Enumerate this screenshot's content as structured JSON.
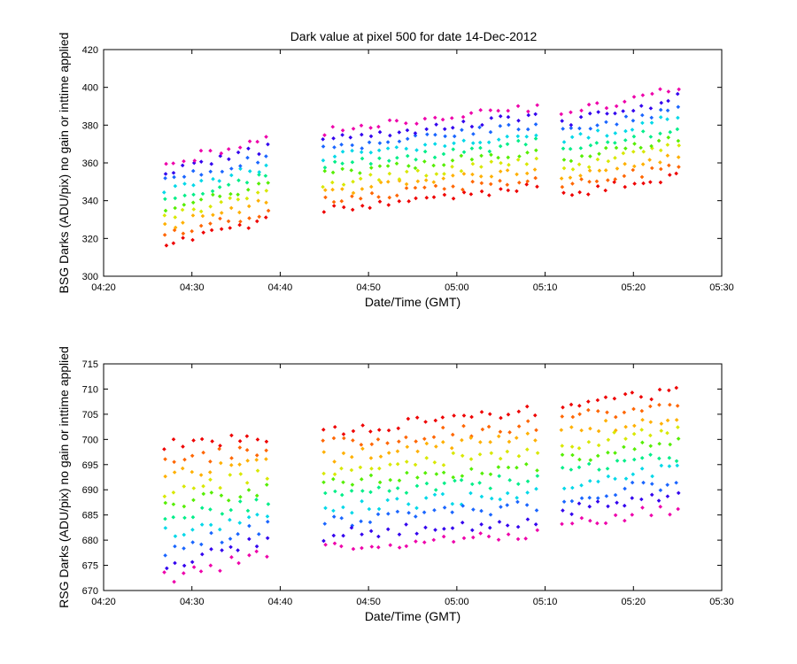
{
  "chart_data": [
    {
      "type": "scatter",
      "title": "Dark value at pixel 500 for date 14-Dec-2012",
      "xlabel": "Date/Time (GMT)",
      "ylabel": "BSG Darks (ADU/pix) no gain or inttime applied",
      "xlim": [
        "04:20",
        "05:30"
      ],
      "ylim": [
        300,
        420
      ],
      "xticks": [
        "04:20",
        "04:30",
        "04:40",
        "04:50",
        "05:00",
        "05:10",
        "05:20",
        "05:30"
      ],
      "yticks": [
        300,
        320,
        340,
        360,
        380,
        400,
        420
      ],
      "grid": false,
      "legend": "none",
      "colormap": "rainbow",
      "series_count": 10,
      "series_colors": [
        "#ee0000",
        "#ff6600",
        "#ffb000",
        "#d8e800",
        "#55ee00",
        "#00ee88",
        "#00d8e8",
        "#1a66ff",
        "#3300ee",
        "#ee00aa"
      ],
      "time_segments": [
        {
          "start": "04:27",
          "end": "04:38.5",
          "samples": 12
        },
        {
          "start": "04:45",
          "end": "05:09",
          "samples": 24
        },
        {
          "start": "05:12",
          "end": "05:25",
          "samples": 14
        }
      ],
      "trend": [
        {
          "time": "04:27",
          "min": 315,
          "max": 362
        },
        {
          "time": "04:38.5",
          "min": 327,
          "max": 375
        },
        {
          "time": "04:45",
          "min": 333,
          "max": 379
        },
        {
          "time": "05:09",
          "min": 345,
          "max": 392
        },
        {
          "time": "05:12",
          "min": 341,
          "max": 388
        },
        {
          "time": "05:25",
          "min": 350,
          "max": 402
        }
      ]
    },
    {
      "type": "scatter",
      "title": "",
      "xlabel": "Date/Time (GMT)",
      "ylabel": "RSG Darks (ADU/pix) no gain or inttime applied",
      "xlim": [
        "04:20",
        "05:30"
      ],
      "ylim": [
        670,
        715
      ],
      "xticks": [
        "04:20",
        "04:30",
        "04:40",
        "04:50",
        "05:00",
        "05:10",
        "05:20",
        "05:30"
      ],
      "yticks": [
        670,
        675,
        680,
        685,
        690,
        695,
        700,
        705,
        710,
        715
      ],
      "grid": false,
      "legend": "none",
      "colormap": "rainbow",
      "series_count": 10,
      "series_colors": [
        "#ee0000",
        "#ff6600",
        "#ffb000",
        "#d8e800",
        "#55ee00",
        "#00ee88",
        "#00d8e8",
        "#1a66ff",
        "#3300ee",
        "#ee00aa"
      ],
      "time_segments": [
        {
          "start": "04:27",
          "end": "04:38.5",
          "samples": 12
        },
        {
          "start": "04:45",
          "end": "05:09",
          "samples": 24
        },
        {
          "start": "05:12",
          "end": "05:25",
          "samples": 14
        }
      ],
      "trend": [
        {
          "time": "04:27",
          "min": 671,
          "max": 700
        },
        {
          "time": "04:38.5",
          "min": 676,
          "max": 702
        },
        {
          "time": "04:45",
          "min": 677,
          "max": 703
        },
        {
          "time": "05:09",
          "min": 680,
          "max": 707
        },
        {
          "time": "05:12",
          "min": 682,
          "max": 708
        },
        {
          "time": "05:25",
          "min": 685,
          "max": 711
        }
      ]
    }
  ]
}
